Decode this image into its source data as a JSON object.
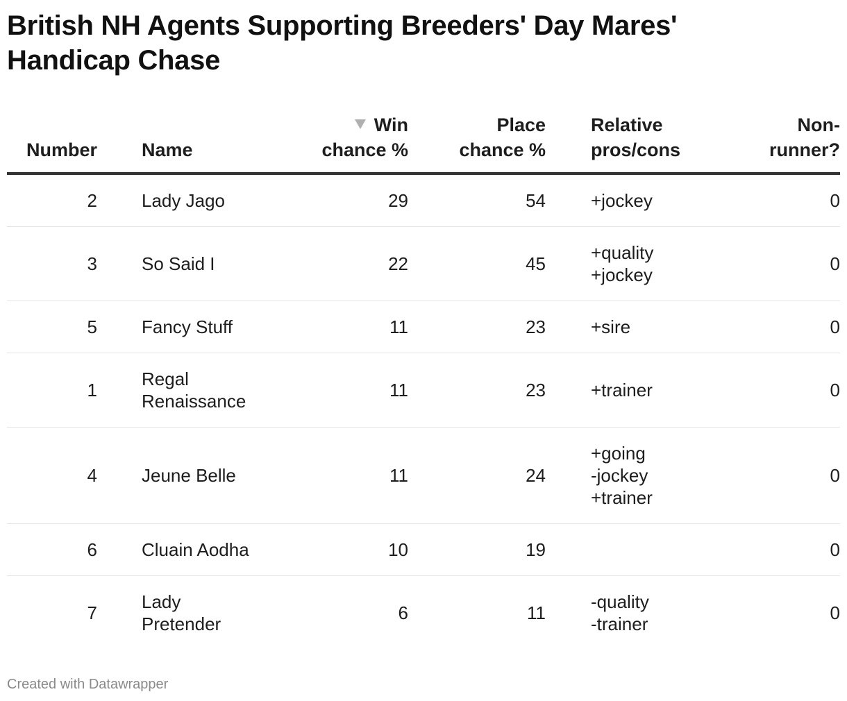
{
  "title": "British NH Agents Supporting Breeders' Day Mares' Handicap Chase",
  "footer": "Created with Datawrapper",
  "icons": {
    "sort": "sort-descending-icon",
    "sort_color": "#b0b0b0"
  },
  "chart_data": {
    "type": "table",
    "title": "British NH Agents Supporting Breeders' Day Mares' Handicap Chase",
    "sorted_by": "Win chance %",
    "sort_order": "descending",
    "columns": [
      "Number",
      "Name",
      "Win chance %",
      "Place chance %",
      "Relative pros/cons",
      "Non-runner?"
    ],
    "header_lines": [
      [
        "Number"
      ],
      [
        "Name"
      ],
      [
        "Win",
        "chance %"
      ],
      [
        "Place",
        "chance %"
      ],
      [
        "Relative",
        "pros/cons"
      ],
      [
        "Non-",
        "runner?"
      ]
    ],
    "rows": [
      {
        "number": "2",
        "name": [
          "Lady Jago"
        ],
        "win": "29",
        "place": "54",
        "pros": [
          "+jockey"
        ],
        "nonrunner": "0"
      },
      {
        "number": "3",
        "name": [
          "So Said I"
        ],
        "win": "22",
        "place": "45",
        "pros": [
          "+quality",
          "+jockey"
        ],
        "nonrunner": "0"
      },
      {
        "number": "5",
        "name": [
          "Fancy Stuff"
        ],
        "win": "11",
        "place": "23",
        "pros": [
          "+sire"
        ],
        "nonrunner": "0"
      },
      {
        "number": "1",
        "name": [
          "Regal",
          "Renaissance"
        ],
        "win": "11",
        "place": "23",
        "pros": [
          "+trainer"
        ],
        "nonrunner": "0"
      },
      {
        "number": "4",
        "name": [
          "Jeune Belle"
        ],
        "win": "11",
        "place": "24",
        "pros": [
          "+going",
          "-jockey",
          "+trainer"
        ],
        "nonrunner": "0"
      },
      {
        "number": "6",
        "name": [
          "Cluain Aodha"
        ],
        "win": "10",
        "place": "19",
        "pros": [],
        "nonrunner": "0"
      },
      {
        "number": "7",
        "name": [
          "Lady",
          "Pretender"
        ],
        "win": "6",
        "place": "11",
        "pros": [
          "-quality",
          "-trainer"
        ],
        "nonrunner": "0"
      }
    ]
  }
}
